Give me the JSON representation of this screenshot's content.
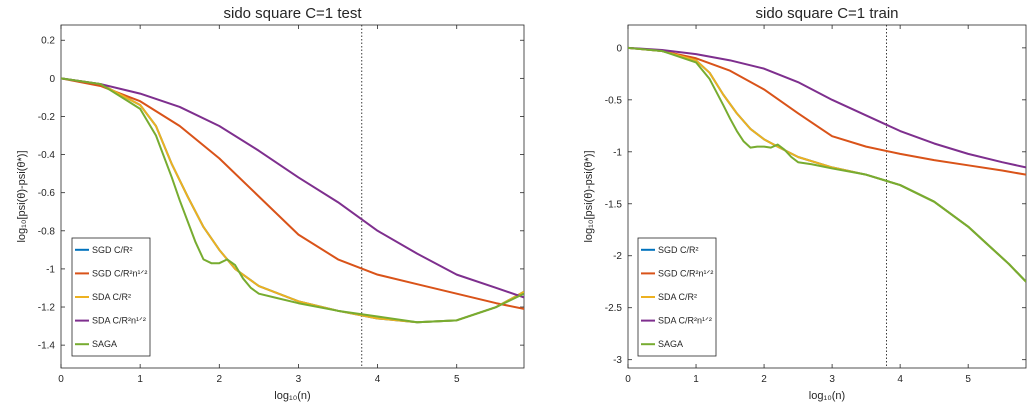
{
  "chart_data": [
    {
      "type": "line",
      "title": "sido square C=1 test",
      "xlabel": "log₁₀(n)",
      "ylabel": "log₁₀[psi(θ)-psi(θ*)]",
      "xlim": [
        0,
        5.85
      ],
      "ylim": [
        -1.52,
        0.28
      ],
      "xticks": [
        "0",
        "1",
        "2",
        "3",
        "4",
        "5"
      ],
      "yticks": [
        "0.2",
        "0",
        "-0.2",
        "-0.4",
        "-0.6",
        "-0.8",
        "-1",
        "-1.2",
        "-1.4"
      ],
      "vline_x": 3.8,
      "legend_position": "bottom-left",
      "grid": false,
      "series": [
        {
          "name": "SGD C/R²",
          "color": "#0072BD",
          "x": [
            0,
            0.5,
            1,
            1.2,
            1.4,
            1.6,
            1.8,
            2,
            2.2,
            2.5,
            3,
            3.5,
            4,
            4.5,
            5,
            5.5,
            5.85
          ],
          "y": [
            0,
            -0.03,
            -0.14,
            -0.25,
            -0.45,
            -0.62,
            -0.78,
            -0.9,
            -1.0,
            -1.09,
            -1.17,
            -1.22,
            -1.26,
            -1.28,
            -1.27,
            -1.2,
            -1.12
          ]
        },
        {
          "name": "SGD C/R²n¹ᐟ²",
          "color": "#D95319",
          "x": [
            0,
            0.5,
            1,
            1.5,
            2,
            2.5,
            3,
            3.5,
            4,
            4.5,
            5,
            5.5,
            5.85
          ],
          "y": [
            0,
            -0.04,
            -0.12,
            -0.25,
            -0.42,
            -0.62,
            -0.82,
            -0.95,
            -1.03,
            -1.08,
            -1.13,
            -1.18,
            -1.21
          ]
        },
        {
          "name": "SDA C/R²",
          "color": "#EDB120",
          "x": [
            0,
            0.5,
            1,
            1.2,
            1.4,
            1.6,
            1.8,
            2,
            2.2,
            2.5,
            3,
            3.5,
            4,
            4.5,
            5,
            5.5,
            5.85
          ],
          "y": [
            0,
            -0.03,
            -0.14,
            -0.25,
            -0.45,
            -0.62,
            -0.78,
            -0.9,
            -1.0,
            -1.09,
            -1.17,
            -1.22,
            -1.26,
            -1.28,
            -1.27,
            -1.2,
            -1.12
          ]
        },
        {
          "name": "SDA C/R²n¹ᐟ²",
          "color": "#7E2F8E",
          "x": [
            0,
            0.5,
            1,
            1.5,
            2,
            2.5,
            3,
            3.5,
            4,
            4.5,
            5,
            5.5,
            5.85
          ],
          "y": [
            0,
            -0.03,
            -0.08,
            -0.15,
            -0.25,
            -0.38,
            -0.52,
            -0.65,
            -0.8,
            -0.92,
            -1.03,
            -1.1,
            -1.15
          ]
        },
        {
          "name": "SAGA",
          "color": "#77AC30",
          "x": [
            0,
            0.5,
            1,
            1.2,
            1.4,
            1.5,
            1.6,
            1.7,
            1.8,
            1.9,
            2,
            2.1,
            2.2,
            2.3,
            2.4,
            2.5,
            2.7,
            3,
            3.5,
            4,
            4.5,
            5,
            5.5,
            5.85
          ],
          "y": [
            0,
            -0.03,
            -0.16,
            -0.3,
            -0.52,
            -0.64,
            -0.75,
            -0.86,
            -0.95,
            -0.97,
            -0.97,
            -0.95,
            -0.98,
            -1.05,
            -1.1,
            -1.13,
            -1.15,
            -1.18,
            -1.22,
            -1.25,
            -1.28,
            -1.27,
            -1.2,
            -1.13
          ]
        }
      ]
    },
    {
      "type": "line",
      "title": "sido square C=1 train",
      "xlabel": "log₁₀(n)",
      "ylabel": "log₁₀[psi(θ)-psi(θ*)]",
      "xlim": [
        0,
        5.85
      ],
      "ylim": [
        -3.08,
        0.22
      ],
      "xticks": [
        "0",
        "1",
        "2",
        "3",
        "4",
        "5"
      ],
      "yticks": [
        "0",
        "-0.5",
        "-1",
        "-1.5",
        "-2",
        "-2.5",
        "-3"
      ],
      "vline_x": 3.8,
      "legend_position": "bottom-left",
      "grid": false,
      "series": [
        {
          "name": "SGD C/R²",
          "color": "#0072BD",
          "x": [
            0,
            0.5,
            1,
            1.2,
            1.4,
            1.6,
            1.8,
            2,
            2.2,
            2.5,
            3,
            3.5,
            4,
            4.5,
            5,
            5.3,
            5.6,
            5.85
          ],
          "y": [
            0,
            -0.03,
            -0.12,
            -0.24,
            -0.45,
            -0.63,
            -0.78,
            -0.88,
            -0.95,
            -1.05,
            -1.15,
            -1.22,
            -1.32,
            -1.48,
            -1.72,
            -1.9,
            -2.08,
            -2.25
          ]
        },
        {
          "name": "SGD C/R²n¹ᐟ²",
          "color": "#D95319",
          "x": [
            0,
            0.5,
            1,
            1.5,
            2,
            2.5,
            3,
            3.5,
            4,
            4.5,
            5,
            5.5,
            5.85
          ],
          "y": [
            0,
            -0.03,
            -0.1,
            -0.22,
            -0.4,
            -0.63,
            -0.85,
            -0.95,
            -1.02,
            -1.08,
            -1.13,
            -1.18,
            -1.22
          ]
        },
        {
          "name": "SDA C/R²",
          "color": "#EDB120",
          "x": [
            0,
            0.5,
            1,
            1.2,
            1.4,
            1.6,
            1.8,
            2,
            2.2,
            2.5,
            3,
            3.5,
            4,
            4.5,
            5,
            5.3,
            5.6,
            5.85
          ],
          "y": [
            0,
            -0.03,
            -0.12,
            -0.24,
            -0.45,
            -0.63,
            -0.78,
            -0.88,
            -0.95,
            -1.05,
            -1.15,
            -1.22,
            -1.32,
            -1.48,
            -1.72,
            -1.9,
            -2.08,
            -2.25
          ]
        },
        {
          "name": "SDA C/R²n¹ᐟ²",
          "color": "#7E2F8E",
          "x": [
            0,
            0.5,
            1,
            1.5,
            2,
            2.5,
            3,
            3.5,
            4,
            4.5,
            5,
            5.5,
            5.85
          ],
          "y": [
            0,
            -0.02,
            -0.06,
            -0.12,
            -0.2,
            -0.33,
            -0.5,
            -0.65,
            -0.8,
            -0.92,
            -1.02,
            -1.1,
            -1.15
          ]
        },
        {
          "name": "SAGA",
          "color": "#77AC30",
          "x": [
            0,
            0.5,
            1,
            1.2,
            1.4,
            1.5,
            1.6,
            1.7,
            1.8,
            1.9,
            2,
            2.1,
            2.2,
            2.3,
            2.4,
            2.5,
            2.7,
            3,
            3.5,
            4,
            4.5,
            5,
            5.3,
            5.6,
            5.85
          ],
          "y": [
            0,
            -0.03,
            -0.14,
            -0.3,
            -0.55,
            -0.68,
            -0.8,
            -0.9,
            -0.96,
            -0.95,
            -0.95,
            -0.96,
            -0.93,
            -0.98,
            -1.05,
            -1.1,
            -1.12,
            -1.16,
            -1.22,
            -1.32,
            -1.48,
            -1.72,
            -1.9,
            -2.08,
            -2.25
          ]
        }
      ]
    }
  ]
}
